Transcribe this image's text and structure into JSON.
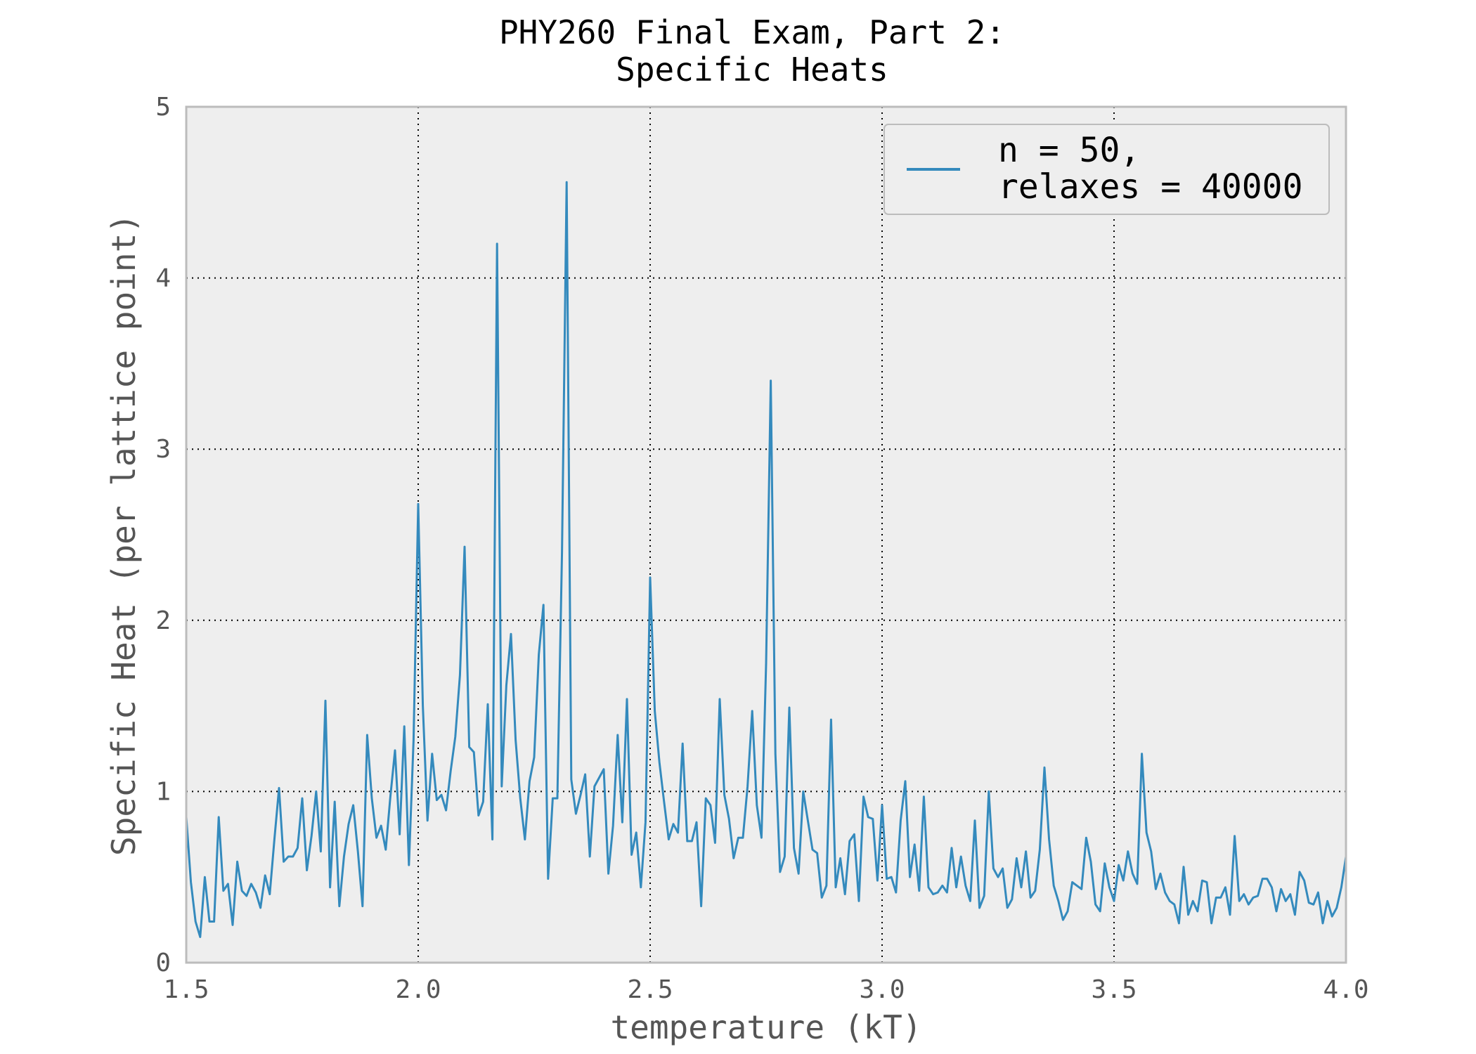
{
  "chart_data": {
    "type": "line",
    "title": [
      "PHY260 Final Exam, Part 2:",
      "Specific Heats"
    ],
    "xlabel": "temperature (kT)",
    "ylabel": "Specific Heat (per lattice point)",
    "xlim": [
      1.5,
      4.0
    ],
    "ylim": [
      0,
      5
    ],
    "xticks": [
      1.5,
      2.0,
      2.5,
      3.0,
      3.5,
      4.0
    ],
    "xtick_labels": [
      "1.5",
      "2.0",
      "2.5",
      "3.0",
      "3.5",
      "4.0"
    ],
    "yticks": [
      0,
      1,
      2,
      3,
      4,
      5
    ],
    "ytick_labels": [
      "0",
      "1",
      "2",
      "3",
      "4",
      "5"
    ],
    "grid": true,
    "legend_position": "top-right",
    "colors": {
      "series": "#348abd",
      "plot_bg": "#eeeeee",
      "frame": "#bcbcbc"
    },
    "series": [
      {
        "name": [
          "n = 50,",
          "relaxes = 40000"
        ],
        "x": [
          1.5,
          1.51,
          1.52,
          1.53,
          1.54,
          1.55,
          1.56,
          1.57,
          1.58,
          1.59,
          1.6,
          1.61,
          1.62,
          1.63,
          1.64,
          1.65,
          1.66,
          1.67,
          1.68,
          1.69,
          1.7,
          1.71,
          1.72,
          1.73,
          1.74,
          1.75,
          1.76,
          1.77,
          1.78,
          1.79,
          1.8,
          1.81,
          1.82,
          1.83,
          1.84,
          1.85,
          1.86,
          1.87,
          1.88,
          1.89,
          1.9,
          1.91,
          1.92,
          1.93,
          1.94,
          1.95,
          1.96,
          1.97,
          1.98,
          1.99,
          2.0,
          2.01,
          2.02,
          2.03,
          2.04,
          2.05,
          2.06,
          2.07,
          2.08,
          2.09,
          2.1,
          2.11,
          2.12,
          2.13,
          2.14,
          2.15,
          2.16,
          2.17,
          2.18,
          2.19,
          2.2,
          2.21,
          2.22,
          2.23,
          2.24,
          2.25,
          2.26,
          2.27,
          2.28,
          2.29,
          2.3,
          2.31,
          2.32,
          2.33,
          2.34,
          2.35,
          2.36,
          2.37,
          2.38,
          2.39,
          2.4,
          2.41,
          2.42,
          2.43,
          2.44,
          2.45,
          2.46,
          2.47,
          2.48,
          2.49,
          2.5,
          2.51,
          2.52,
          2.53,
          2.54,
          2.55,
          2.56,
          2.57,
          2.58,
          2.59,
          2.6,
          2.61,
          2.62,
          2.63,
          2.64,
          2.65,
          2.66,
          2.67,
          2.68,
          2.69,
          2.7,
          2.71,
          2.72,
          2.73,
          2.74,
          2.75,
          2.76,
          2.77,
          2.78,
          2.79,
          2.8,
          2.81,
          2.82,
          2.83,
          2.84,
          2.85,
          2.86,
          2.87,
          2.88,
          2.89,
          2.9,
          2.91,
          2.92,
          2.93,
          2.94,
          2.95,
          2.96,
          2.97,
          2.98,
          2.99,
          3.0,
          3.01,
          3.02,
          3.03,
          3.04,
          3.05,
          3.06,
          3.07,
          3.08,
          3.09,
          3.1,
          3.11,
          3.12,
          3.13,
          3.14,
          3.15,
          3.16,
          3.17,
          3.18,
          3.19,
          3.2,
          3.21,
          3.22,
          3.23,
          3.24,
          3.25,
          3.26,
          3.27,
          3.28,
          3.29,
          3.3,
          3.31,
          3.32,
          3.33,
          3.34,
          3.35,
          3.36,
          3.37,
          3.38,
          3.39,
          3.4,
          3.41,
          3.42,
          3.43,
          3.44,
          3.45,
          3.46,
          3.47,
          3.48,
          3.49,
          3.5,
          3.51,
          3.52,
          3.53,
          3.54,
          3.55,
          3.56,
          3.57,
          3.58,
          3.59,
          3.6,
          3.61,
          3.62,
          3.63,
          3.64,
          3.65,
          3.66,
          3.67,
          3.68,
          3.69,
          3.7,
          3.71,
          3.72,
          3.73,
          3.74,
          3.75,
          3.76,
          3.77,
          3.78,
          3.79,
          3.8,
          3.81,
          3.82,
          3.83,
          3.84,
          3.85,
          3.86,
          3.87,
          3.88,
          3.89,
          3.9,
          3.91,
          3.92,
          3.93,
          3.94,
          3.95,
          3.96,
          3.97,
          3.98,
          3.99,
          4.0
        ],
        "y": [
          0.85,
          0.47,
          0.24,
          0.15,
          0.5,
          0.24,
          0.24,
          0.85,
          0.42,
          0.46,
          0.22,
          0.59,
          0.42,
          0.39,
          0.46,
          0.41,
          0.32,
          0.51,
          0.4,
          0.72,
          1.02,
          0.59,
          0.62,
          0.62,
          0.67,
          0.96,
          0.54,
          0.74,
          1.0,
          0.65,
          1.53,
          0.44,
          0.94,
          0.33,
          0.62,
          0.81,
          0.92,
          0.65,
          0.33,
          1.33,
          0.96,
          0.73,
          0.8,
          0.66,
          0.97,
          1.24,
          0.75,
          1.38,
          0.57,
          1.3,
          2.68,
          1.5,
          0.83,
          1.22,
          0.95,
          0.98,
          0.89,
          1.12,
          1.32,
          1.68,
          2.43,
          1.26,
          1.23,
          0.86,
          0.94,
          1.51,
          0.72,
          4.2,
          1.03,
          1.62,
          1.92,
          1.3,
          0.96,
          0.72,
          1.06,
          1.2,
          1.8,
          2.09,
          0.49,
          0.96,
          0.96,
          2.4,
          4.56,
          1.07,
          0.87,
          0.98,
          1.1,
          0.62,
          1.03,
          1.08,
          1.13,
          0.52,
          0.8,
          1.33,
          0.82,
          1.54,
          0.63,
          0.76,
          0.44,
          0.82,
          2.25,
          1.47,
          1.17,
          0.94,
          0.72,
          0.81,
          0.76,
          1.28,
          0.71,
          0.71,
          0.82,
          0.33,
          0.96,
          0.92,
          0.7,
          1.54,
          0.98,
          0.84,
          0.61,
          0.73,
          0.73,
          1.03,
          1.47,
          0.92,
          0.73,
          1.75,
          3.4,
          1.22,
          0.53,
          0.62,
          1.49,
          0.67,
          0.52,
          1.0,
          0.83,
          0.66,
          0.64,
          0.38,
          0.45,
          1.42,
          0.44,
          0.61,
          0.4,
          0.71,
          0.75,
          0.36,
          0.97,
          0.85,
          0.84,
          0.48,
          0.92,
          0.49,
          0.5,
          0.41,
          0.83,
          1.06,
          0.5,
          0.69,
          0.42,
          0.97,
          0.44,
          0.4,
          0.41,
          0.45,
          0.41,
          0.67,
          0.44,
          0.62,
          0.45,
          0.36,
          0.83,
          0.32,
          0.39,
          1.0,
          0.55,
          0.5,
          0.55,
          0.32,
          0.37,
          0.61,
          0.44,
          0.65,
          0.38,
          0.42,
          0.66,
          1.14,
          0.72,
          0.45,
          0.36,
          0.25,
          0.3,
          0.47,
          0.45,
          0.43,
          0.73,
          0.59,
          0.34,
          0.3,
          0.58,
          0.44,
          0.36,
          0.57,
          0.48,
          0.65,
          0.52,
          0.46,
          1.22,
          0.76,
          0.65,
          0.43,
          0.52,
          0.41,
          0.36,
          0.34,
          0.23,
          0.56,
          0.28,
          0.36,
          0.3,
          0.48,
          0.47,
          0.23,
          0.38,
          0.38,
          0.44,
          0.28,
          0.74,
          0.36,
          0.4,
          0.34,
          0.38,
          0.39,
          0.49,
          0.49,
          0.44,
          0.3,
          0.43,
          0.36,
          0.4,
          0.28,
          0.53,
          0.48,
          0.35,
          0.34,
          0.41,
          0.23,
          0.36,
          0.27,
          0.32,
          0.44,
          0.62
        ]
      }
    ]
  }
}
